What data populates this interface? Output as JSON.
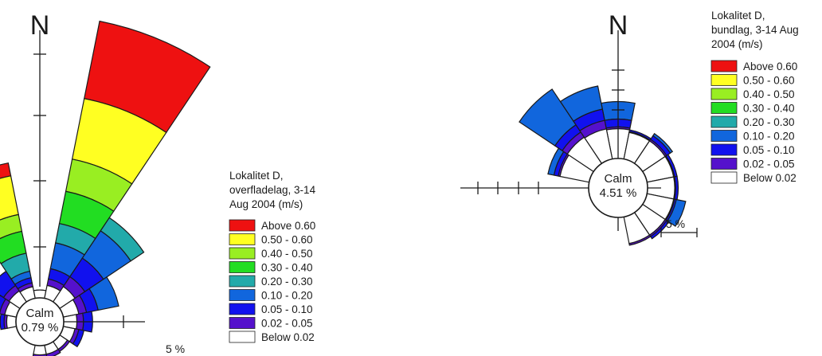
{
  "chart_data": [
    {
      "type": "windrose",
      "north_label": "N",
      "calm_label": "Calm",
      "calm_value": "0.79 %",
      "scale_label": "5 %",
      "legend_title": [
        "Lokalitet D,",
        "overfladelag, 3-14",
        "Aug 2004 (m/s)"
      ],
      "bins": [
        "Above 0.60",
        "0.50 - 0.60",
        "0.40 - 0.50",
        "0.30 - 0.40",
        "0.20 - 0.30",
        "0.10 - 0.20",
        "0.05 - 0.10",
        "0.02 - 0.05",
        "Below 0.02"
      ],
      "colors": [
        "#ee1111",
        "#ffff22",
        "#99ee22",
        "#22dd22",
        "#22aaaa",
        "#1166dd",
        "#1111ee",
        "#5511cc",
        "#ffffff"
      ],
      "sectors": [
        {
          "direction_deg": 0,
          "cumulative_percent": [
            0,
            0,
            0,
            0,
            0,
            0,
            0,
            0.3,
            0.6
          ]
        },
        {
          "direction_deg": 22.5,
          "cumulative_percent": [
            21.5,
            15.5,
            10.8,
            8.3,
            5.8,
            4.3,
            2.3,
            1.5,
            1.0
          ]
        },
        {
          "direction_deg": 45,
          "cumulative_percent": [
            0,
            0,
            0,
            0,
            7.7,
            6.5,
            4.0,
            2.3,
            1.4
          ]
        },
        {
          "direction_deg": 67.5,
          "cumulative_percent": [
            0,
            0,
            0,
            0,
            0,
            4.3,
            2.7,
            1.8,
            1.2
          ]
        },
        {
          "direction_deg": 90,
          "cumulative_percent": [
            0,
            0,
            0,
            0,
            0,
            0,
            2.2,
            1.5,
            1.0
          ]
        },
        {
          "direction_deg": 112.5,
          "cumulative_percent": [
            0,
            0,
            0,
            0,
            0,
            0,
            1.6,
            1.2,
            0.9
          ]
        },
        {
          "direction_deg": 135,
          "cumulative_percent": [
            0,
            0,
            0,
            0,
            0,
            0,
            0,
            0.9,
            0.7
          ]
        },
        {
          "direction_deg": 157.5,
          "cumulative_percent": [
            0,
            0,
            0,
            0,
            0,
            0,
            0,
            1.0,
            0.7
          ]
        },
        {
          "direction_deg": 180,
          "cumulative_percent": [
            0,
            0,
            0,
            0,
            0,
            0,
            1.1,
            0.9,
            0.7
          ]
        },
        {
          "direction_deg": 270,
          "cumulative_percent": [
            0,
            0,
            0,
            0,
            0,
            0,
            1.2,
            0.9,
            0.7
          ]
        },
        {
          "direction_deg": 292.5,
          "cumulative_percent": [
            0,
            0,
            0,
            0,
            0,
            0,
            1.8,
            1.3,
            0.9
          ]
        },
        {
          "direction_deg": 315,
          "cumulative_percent": [
            0,
            0,
            0,
            0,
            0,
            1.3,
            2.8,
            1.5,
            1.0
          ]
        },
        {
          "direction_deg": 337.5,
          "cumulative_percent": [
            10.5,
            9.5,
            6.5,
            5.2,
            3.5,
            2.1,
            1.6,
            1.2,
            0.9
          ]
        }
      ]
    },
    {
      "type": "windrose",
      "north_label": "N",
      "calm_label": "Calm",
      "calm_value": "4.51 %",
      "scale_label": "5 %",
      "legend_title": [
        "Lokalitet D,",
        "bundlag, 3-14 Aug",
        "2004 (m/s)"
      ],
      "bins": [
        "Above 0.60",
        "0.50 - 0.60",
        "0.40 - 0.50",
        "0.30 - 0.40",
        "0.20 - 0.30",
        "0.10 - 0.20",
        "0.05 - 0.10",
        "0.02 - 0.05",
        "Below 0.02"
      ],
      "colors": [
        "#ee1111",
        "#ffff22",
        "#99ee22",
        "#22dd22",
        "#22aaaa",
        "#1166dd",
        "#1111ee",
        "#5511cc",
        "#ffffff"
      ],
      "sectors": [
        {
          "direction_deg": 0,
          "cumulative_percent": [
            0,
            0,
            0,
            0,
            0,
            6.5,
            4.5,
            3.6,
            3.4
          ]
        },
        {
          "direction_deg": 22.5,
          "cumulative_percent": [
            0,
            0,
            0,
            0,
            0,
            0,
            3.4,
            3.2,
            3.1
          ]
        },
        {
          "direction_deg": 45,
          "cumulative_percent": [
            0,
            0,
            0,
            0,
            0,
            4.1,
            3.8,
            3.3,
            3.1
          ]
        },
        {
          "direction_deg": 67.5,
          "cumulative_percent": [
            0,
            0,
            0,
            0,
            0,
            0,
            3.5,
            3.2,
            3.1
          ]
        },
        {
          "direction_deg": 90,
          "cumulative_percent": [
            0,
            0,
            0,
            0,
            0,
            0,
            3.5,
            3.2,
            3.1
          ]
        },
        {
          "direction_deg": 112.5,
          "cumulative_percent": [
            0,
            0,
            0,
            0,
            0,
            4.5,
            3.4,
            3.2,
            3.1
          ]
        },
        {
          "direction_deg": 135,
          "cumulative_percent": [
            0,
            0,
            0,
            0,
            0,
            0,
            3.6,
            3.3,
            3.1
          ]
        },
        {
          "direction_deg": 157.5,
          "cumulative_percent": [
            0,
            0,
            0,
            0,
            0,
            0,
            0,
            3.3,
            3.1
          ]
        },
        {
          "direction_deg": 292.5,
          "cumulative_percent": [
            0,
            0,
            0,
            0,
            0,
            4.8,
            4.1,
            3.6,
            3.4
          ]
        },
        {
          "direction_deg": 315,
          "cumulative_percent": [
            0,
            0,
            0,
            0,
            0,
            10.2,
            5.3,
            4.3,
            3.6
          ]
        },
        {
          "direction_deg": 337.5,
          "cumulative_percent": [
            0,
            0,
            0,
            0,
            0,
            8.5,
            5.8,
            4.5,
            3.5
          ]
        }
      ]
    }
  ]
}
